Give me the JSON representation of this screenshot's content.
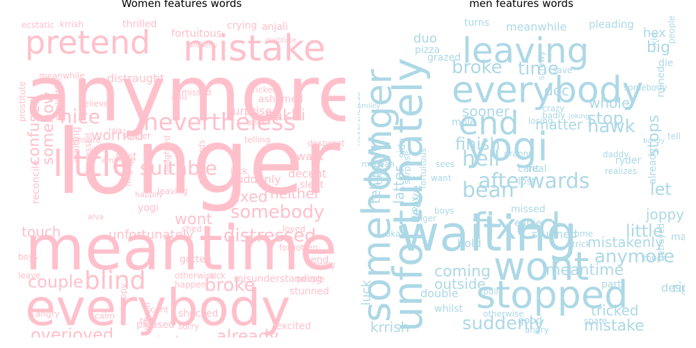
{
  "figure": {
    "left_title": "Women features words",
    "right_title": "men features words"
  },
  "chart_data": [
    {
      "type": "wordcloud",
      "title": "Women features words",
      "color": "#ffc0cb",
      "words": [
        "longer",
        "anymore",
        "meantime",
        "everybody",
        "mistake",
        "pretend",
        "nevertheless",
        "little",
        "somebody",
        "blind",
        "suitable",
        "distressed",
        "worried",
        "nice",
        "sakhi",
        "couple",
        "confused",
        "somehow",
        "fixed",
        "neither",
        "broke",
        "already",
        "overjoyed",
        "touch",
        "wont",
        "unfortunately",
        "thrilled",
        "fortuitous",
        "crying",
        "anjali",
        "missed",
        "distraught",
        "ecstatic",
        "krrish",
        "meanwhile",
        "neglectful",
        "relieved",
        "tricked",
        "ashamed",
        "surprise",
        "sees",
        "telling",
        "desperate",
        "unsure",
        "sooner",
        "past",
        "forgive",
        "delighted",
        "afterwards",
        "suddenly",
        "want",
        "decent",
        "slept",
        "reconcile",
        "depressed",
        "waiting",
        "embrace",
        "luck",
        "happily",
        "leaving",
        "yogi",
        "loved",
        "woo",
        "lonely",
        "end",
        "shed",
        "gotten",
        "otherwise",
        "sick",
        "misunderstanding",
        "stunned",
        "people",
        "happen",
        "unhappy",
        "unwell",
        "cant",
        "calm",
        "angry",
        "pleased",
        "tell",
        "shocked",
        "sorry",
        "excited",
        "ruined",
        "boys",
        "leave",
        "forgotten",
        "alva",
        "raja",
        "anu",
        "destitute",
        "properly",
        "prostitute"
      ]
    },
    {
      "type": "wordcloud",
      "title": "men features words",
      "color": "#add8e6",
      "words": [
        "waiting",
        "unfortunately",
        "somehow",
        "longer",
        "stopped",
        "yogi",
        "fixed",
        "wont",
        "everybody",
        "leaving",
        "end",
        "afterwards",
        "hell",
        "bean",
        "finish",
        "hawk",
        "stop",
        "time",
        "broke",
        "doc",
        "whole",
        "matter",
        "sooner",
        "little",
        "anymore",
        "mistakenly",
        "meantime",
        "tricked",
        "mistake",
        "suddenly",
        "krrish",
        "luck",
        "telling",
        "latter",
        "leave",
        "coming",
        "outside",
        "double",
        "hold",
        "let",
        "big",
        "hex",
        "meanwhile",
        "duo",
        "pizza",
        "grazed",
        "turns",
        "pleading",
        "die",
        "ruined",
        "stops",
        "already",
        "joppy",
        "missed",
        "lost",
        "cant",
        "real",
        "sees",
        "want",
        "earlier",
        "stunned",
        "come",
        "trick",
        "part",
        "mad",
        "right",
        "desperate",
        "betrayed",
        "ryder",
        "granny",
        "daddy",
        "realizes",
        "okay",
        "tiger",
        "boys",
        "fortuitous",
        "puppy",
        "surprise",
        "side",
        "whilst",
        "pull",
        "good",
        "angry",
        "spare",
        "otherwise",
        "throw",
        "mcbean",
        "smiley",
        "mole",
        "somebody",
        "save",
        "screwy",
        "badly",
        "crazy",
        "joking",
        "barely",
        "nevertheless",
        "touch",
        "kid",
        "people",
        "losing",
        "tell",
        "blow"
      ]
    }
  ]
}
